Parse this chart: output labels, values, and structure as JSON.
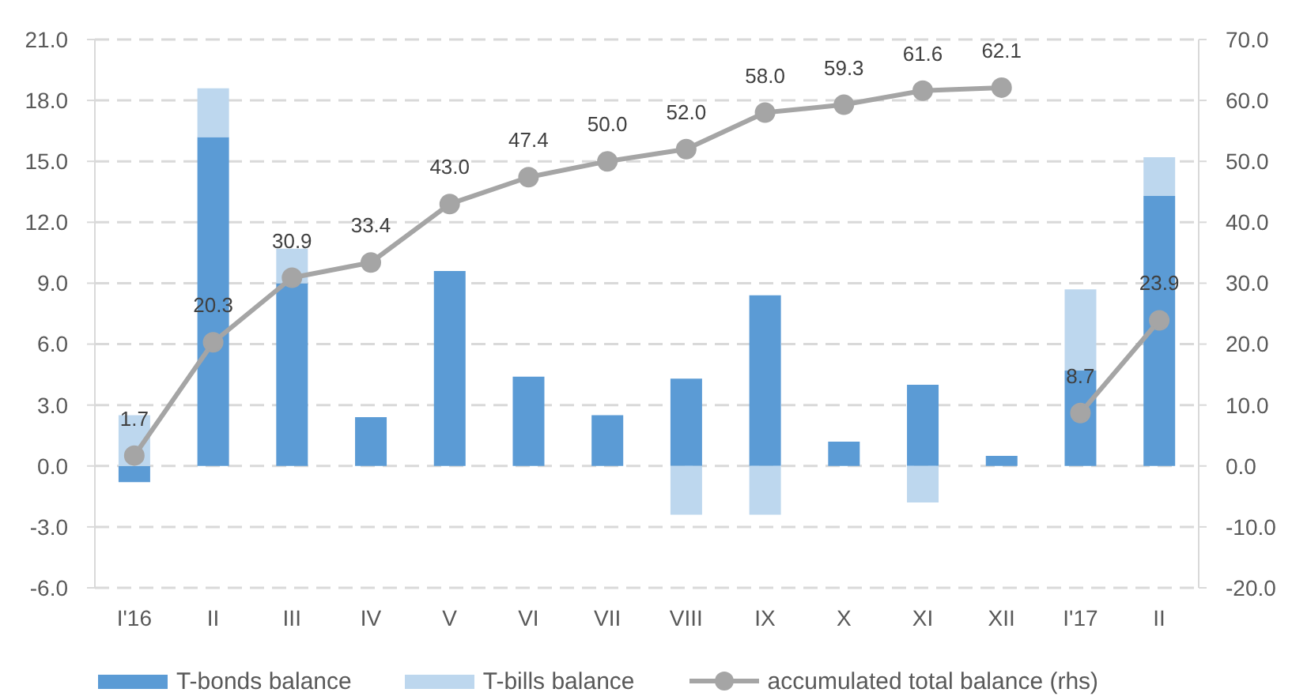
{
  "chart_data": {
    "type": "bar",
    "stacked": true,
    "categories": [
      "I'16",
      "II",
      "III",
      "IV",
      "V",
      "VI",
      "VII",
      "VIII",
      "IX",
      "X",
      "XI",
      "XII",
      "I'17",
      "II"
    ],
    "series": [
      {
        "name": "T-bonds balance",
        "color": "#5b9bd5",
        "values": [
          -0.8,
          16.2,
          9.0,
          2.4,
          9.6,
          4.4,
          2.5,
          4.3,
          8.4,
          1.2,
          4.0,
          0.5,
          4.7,
          13.3
        ]
      },
      {
        "name": "T-bills balance",
        "color": "#bdd7ee",
        "values": [
          2.5,
          2.4,
          1.7,
          null,
          null,
          null,
          null,
          -2.4,
          -2.4,
          null,
          -1.8,
          null,
          4.0,
          1.9
        ]
      },
      {
        "name": "accumulated total balance (rhs)",
        "type": "line",
        "axis": "y2",
        "color": "#a5a5a5",
        "values": [
          1.7,
          20.3,
          30.9,
          33.4,
          43.0,
          47.4,
          50.0,
          52.0,
          58.0,
          59.3,
          61.6,
          62.1,
          null,
          null
        ],
        "value_labels": [
          "1.7",
          "20.3",
          "30.9",
          "33.4",
          "43.0",
          "47.4",
          "50.0",
          "52.0",
          "58.0",
          "59.3",
          "61.6",
          "62.1",
          null,
          null
        ]
      },
      {
        "type": "line",
        "axis": "y2",
        "color": "#a5a5a5",
        "values": [
          null,
          null,
          null,
          null,
          null,
          null,
          null,
          null,
          null,
          null,
          null,
          null,
          8.7,
          23.9
        ],
        "value_labels": [
          null,
          null,
          null,
          null,
          null,
          null,
          null,
          null,
          null,
          null,
          null,
          null,
          "8.7",
          "23.9"
        ]
      }
    ],
    "ylim": [
      -6,
      21
    ],
    "yticks": [
      {
        "value": -6,
        "label": "-6.0"
      },
      {
        "value": -3,
        "label": "-3.0"
      },
      {
        "value": 0,
        "label": "0.0"
      },
      {
        "value": 3,
        "label": "3.0"
      },
      {
        "value": 6,
        "label": "6.0"
      },
      {
        "value": 9,
        "label": "9.0"
      },
      {
        "value": 12,
        "label": "12.0"
      },
      {
        "value": 15,
        "label": "15.0"
      },
      {
        "value": 18,
        "label": "18.0"
      },
      {
        "value": 21,
        "label": "21.0"
      }
    ],
    "y2lim": [
      -20,
      70
    ],
    "y2ticks": [
      {
        "value": -20,
        "label": "-20.0"
      },
      {
        "value": -10,
        "label": "-10.0"
      },
      {
        "value": 0,
        "label": "0.0"
      },
      {
        "value": 10,
        "label": "10.0"
      },
      {
        "value": 20,
        "label": "20.0"
      },
      {
        "value": 30,
        "label": "30.0"
      },
      {
        "value": 40,
        "label": "40.0"
      },
      {
        "value": 50,
        "label": "50.0"
      },
      {
        "value": 60,
        "label": "60.0"
      },
      {
        "value": 70,
        "label": "70.0"
      }
    ],
    "grid": "y",
    "legend": "bottom",
    "marker": "circle",
    "line_style": "solid"
  }
}
